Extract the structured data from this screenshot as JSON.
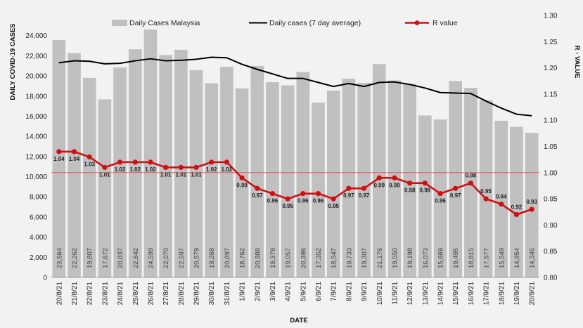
{
  "chart_data": {
    "type": "bar+line",
    "ylabel_left": "DAILY COVID-19 CASES",
    "ylabel_right": "R - VALUE",
    "xlabel": "DATE",
    "ylim_left": [
      0,
      26000
    ],
    "ylim_right": [
      0.8,
      1.3
    ],
    "yticks_left": [
      "0",
      "2,000",
      "4,000",
      "6,000",
      "8,000",
      "10,000",
      "12,000",
      "14,000",
      "16,000",
      "18,000",
      "20,000",
      "22,000",
      "24,000"
    ],
    "yticks_right": [
      "0.80",
      "0.85",
      "0.90",
      "0.95",
      "1.00",
      "1.05",
      "1.10",
      "1.15",
      "1.20",
      "1.25",
      "1.30"
    ],
    "categories": [
      "20/8/21",
      "21/8/21",
      "22/8/21",
      "23/8/21",
      "24/8/21",
      "25/8/21",
      "26/8/21",
      "27/8/21",
      "28/8/21",
      "29/8/21",
      "30/8/21",
      "31/8/21",
      "1/9/21",
      "2/9/21",
      "3/9/21",
      "4/9/21",
      "5/9/21",
      "6/9/21",
      "7/9/21",
      "8/9/21",
      "9/9/21",
      "10/9/21",
      "11/9/21",
      "12/9/21",
      "13/9/21",
      "14/9/21",
      "15/9/21",
      "16/9/21",
      "17/9/21",
      "18/9/21",
      "19/9/21",
      "20/9/21"
    ],
    "series": [
      {
        "name": "Daily Cases Malaysia",
        "kind": "bar",
        "axis": "left",
        "color": "#c0c0c0",
        "values": [
          23564,
          22262,
          19807,
          17672,
          20837,
          22642,
          24599,
          22070,
          22597,
          20579,
          19268,
          20897,
          18762,
          20988,
          19378,
          19057,
          20396,
          17352,
          18547,
          19733,
          19307,
          21176,
          19550,
          19198,
          16073,
          15669,
          19495,
          18815,
          17577,
          15549,
          14954,
          14345
        ],
        "labels": [
          "23,564",
          "22,262",
          "19,807",
          "17,672",
          "20,837",
          "22,642",
          "24,599",
          "22,070",
          "22,597",
          "20,579",
          "19,268",
          "20,897",
          "18,762",
          "20,988",
          "19,378",
          "19,057",
          "20,396",
          "17,352",
          "18,547",
          "19,733",
          "19,307",
          "21,176",
          "19,550",
          "19,198",
          "16,073",
          "15,669",
          "19,495",
          "18,815",
          "17,577",
          "15,549",
          "14,954",
          "14,345"
        ]
      },
      {
        "name": "Daily cases (7 day average)",
        "kind": "line",
        "axis": "left",
        "color": "#000000",
        "values": [
          21300,
          21500,
          21450,
          21200,
          21250,
          21500,
          21700,
          21500,
          21550,
          21650,
          21850,
          21800,
          21150,
          20650,
          20200,
          19750,
          19750,
          19350,
          18950,
          19250,
          18950,
          19350,
          19400,
          19150,
          18800,
          18350,
          18300,
          18250,
          17500,
          16800,
          16200,
          16050
        ]
      },
      {
        "name": "R value",
        "kind": "line",
        "axis": "right",
        "color": "#d01010",
        "values": [
          1.04,
          1.04,
          1.03,
          1.01,
          1.02,
          1.02,
          1.02,
          1.01,
          1.01,
          1.01,
          1.02,
          1.02,
          0.99,
          0.97,
          0.96,
          0.95,
          0.96,
          0.96,
          0.95,
          0.97,
          0.97,
          0.99,
          0.99,
          0.98,
          0.98,
          0.96,
          0.97,
          0.98,
          0.95,
          0.94,
          0.92,
          0.93
        ],
        "labels": [
          "1.04",
          "1.04",
          "1.03",
          "1.01",
          "1.02",
          "1.02",
          "1.02",
          "1.01",
          "1.01",
          "1.01",
          "1.02",
          "1.02",
          "0.99",
          "0.97",
          "0.96",
          "0.95",
          "0.96",
          "0.96",
          "0.95",
          "0.97",
          "0.97",
          "0.99",
          "0.99",
          "0.98",
          "0.98",
          "0.96",
          "0.97",
          "0.98",
          "0.95",
          "0.94",
          "0.92",
          "0.93"
        ]
      }
    ],
    "reference_line": {
      "axis": "right",
      "value": 1.0,
      "color": "#e05050"
    },
    "legend_position": "top",
    "grid": false
  }
}
